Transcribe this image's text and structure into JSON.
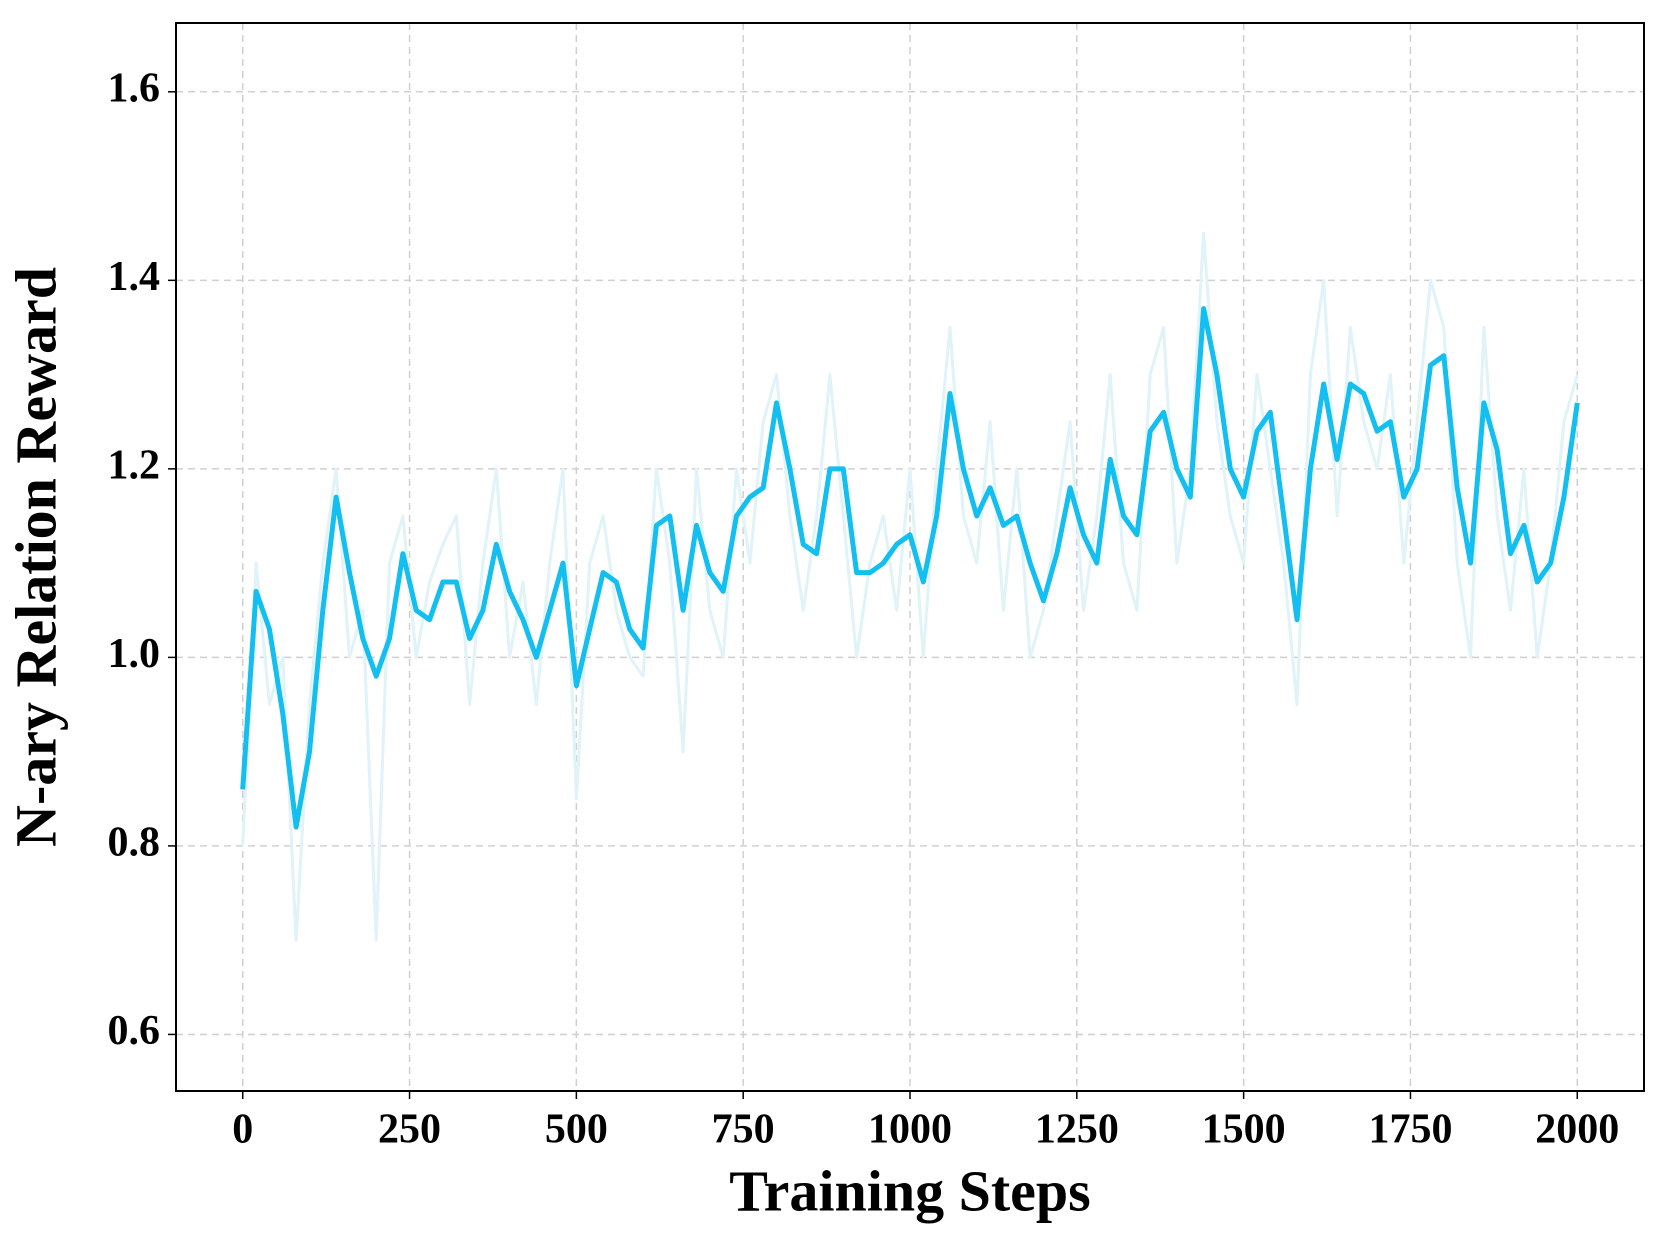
{
  "chart_data": {
    "type": "line",
    "xlabel": "Training Steps",
    "ylabel": "N-ary Relation Reward",
    "x": [
      0,
      20,
      40,
      60,
      80,
      100,
      120,
      140,
      160,
      180,
      200,
      220,
      240,
      260,
      280,
      300,
      320,
      340,
      360,
      380,
      400,
      420,
      440,
      460,
      480,
      500,
      520,
      540,
      560,
      580,
      600,
      620,
      640,
      660,
      680,
      700,
      720,
      740,
      760,
      780,
      800,
      820,
      840,
      860,
      880,
      900,
      920,
      940,
      960,
      980,
      1000,
      1020,
      1040,
      1060,
      1080,
      1100,
      1120,
      1140,
      1160,
      1180,
      1200,
      1220,
      1240,
      1260,
      1280,
      1300,
      1320,
      1340,
      1360,
      1380,
      1400,
      1420,
      1440,
      1460,
      1480,
      1500,
      1520,
      1540,
      1560,
      1580,
      1600,
      1620,
      1640,
      1660,
      1680,
      1700,
      1720,
      1740,
      1760,
      1780,
      1800,
      1820,
      1840,
      1860,
      1880,
      1900,
      1920,
      1940,
      1960,
      1980,
      2000
    ],
    "series": [
      {
        "color": "#dff3f9",
        "values": [
          0.8,
          1.1,
          0.95,
          1.0,
          0.7,
          0.95,
          1.1,
          1.2,
          1.0,
          1.05,
          0.7,
          1.1,
          1.15,
          1.0,
          1.08,
          1.12,
          1.15,
          0.95,
          1.1,
          1.2,
          1.0,
          1.08,
          0.95,
          1.1,
          1.2,
          0.85,
          1.1,
          1.15,
          1.05,
          1.0,
          0.98,
          1.2,
          1.1,
          0.9,
          1.2,
          1.05,
          1.0,
          1.2,
          1.1,
          1.25,
          1.3,
          1.15,
          1.05,
          1.15,
          1.3,
          1.15,
          1.0,
          1.1,
          1.15,
          1.05,
          1.2,
          1.0,
          1.2,
          1.35,
          1.15,
          1.1,
          1.25,
          1.05,
          1.2,
          1.0,
          1.05,
          1.15,
          1.25,
          1.05,
          1.15,
          1.3,
          1.1,
          1.05,
          1.3,
          1.35,
          1.1,
          1.2,
          1.45,
          1.25,
          1.15,
          1.1,
          1.3,
          1.2,
          1.1,
          0.95,
          1.3,
          1.4,
          1.15,
          1.35,
          1.25,
          1.2,
          1.3,
          1.1,
          1.25,
          1.4,
          1.35,
          1.1,
          1.0,
          1.35,
          1.15,
          1.05,
          1.2,
          1.0,
          1.1,
          1.25,
          1.3
        ]
      },
      {
        "color": "#12bff0",
        "values": [
          0.86,
          1.07,
          1.03,
          0.94,
          0.82,
          0.9,
          1.05,
          1.17,
          1.09,
          1.02,
          0.98,
          1.02,
          1.11,
          1.05,
          1.04,
          1.08,
          1.08,
          1.02,
          1.05,
          1.12,
          1.07,
          1.04,
          1.0,
          1.05,
          1.1,
          0.97,
          1.03,
          1.09,
          1.08,
          1.03,
          1.01,
          1.14,
          1.15,
          1.05,
          1.14,
          1.09,
          1.07,
          1.15,
          1.17,
          1.18,
          1.27,
          1.2,
          1.12,
          1.11,
          1.2,
          1.2,
          1.09,
          1.09,
          1.1,
          1.12,
          1.13,
          1.08,
          1.15,
          1.28,
          1.2,
          1.15,
          1.18,
          1.14,
          1.15,
          1.1,
          1.06,
          1.11,
          1.18,
          1.13,
          1.1,
          1.21,
          1.15,
          1.13,
          1.24,
          1.26,
          1.2,
          1.17,
          1.37,
          1.3,
          1.2,
          1.17,
          1.24,
          1.26,
          1.15,
          1.04,
          1.2,
          1.29,
          1.21,
          1.29,
          1.28,
          1.24,
          1.25,
          1.17,
          1.2,
          1.31,
          1.32,
          1.18,
          1.1,
          1.27,
          1.22,
          1.11,
          1.14,
          1.08,
          1.1,
          1.17,
          1.27
        ]
      }
    ],
    "xlim": [
      -100,
      2100
    ],
    "ylim": [
      0.54,
      1.673
    ],
    "xticks": [
      0,
      250,
      500,
      750,
      1000,
      1250,
      1500,
      1750,
      2000
    ],
    "yticks": [
      0.6,
      0.8,
      {
        "value": 1,
        "label": "1.0"
      },
      1.2,
      1.4,
      1.6
    ],
    "grid": true
  }
}
